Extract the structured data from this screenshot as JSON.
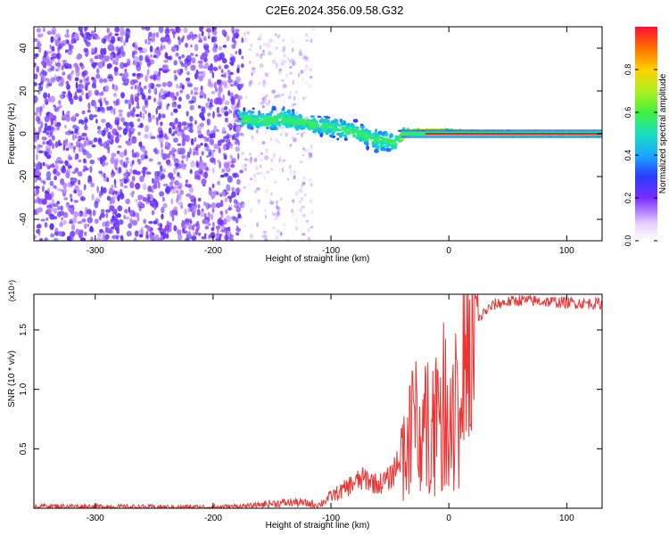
{
  "title": "C2E6.2024.356.09.58.G32",
  "chart_data": [
    {
      "type": "heatmap",
      "title": "C2E6.2024.356.09.58.G32",
      "xlabel": "Height of straight line (km)",
      "ylabel": "Frequency (Hz)",
      "xlim": [
        -352,
        130
      ],
      "ylim": [
        -50,
        50
      ],
      "xticks": [
        -300,
        -200,
        -100,
        0,
        100
      ],
      "yticks": [
        -40,
        -20,
        0,
        20,
        40
      ],
      "colorbar": {
        "label": "Normalized spectral amplitude",
        "range": [
          0,
          1
        ],
        "ticks": [
          "0.0",
          "0.2",
          "0.4",
          "0.6",
          "0.8"
        ]
      },
      "doppler_track": {
        "x": [
          -175,
          -160,
          -140,
          -120,
          -100,
          -80,
          -60,
          -45,
          -38,
          -20,
          0,
          20,
          60,
          100,
          130
        ],
        "y": [
          7,
          6,
          7,
          5,
          3,
          1,
          -3,
          -4,
          0,
          1,
          1,
          0.5,
          0,
          0,
          0
        ],
        "spread_hz": [
          6,
          6,
          7,
          6,
          6,
          6,
          7,
          6,
          3,
          1.5,
          1,
          1,
          1,
          1,
          1
        ]
      },
      "grid": false
    },
    {
      "type": "line",
      "xlabel": "Height of straight line (km)",
      "ylabel": "SNR (10 * v/v)",
      "scale_label": "(x10⁴)",
      "xlim": [
        -352,
        130
      ],
      "ylim": [
        0,
        1.8
      ],
      "xticks": [
        -300,
        -200,
        -100,
        0,
        100
      ],
      "yticks": [
        0.5,
        1.0,
        1.5
      ],
      "color": "#ee3333",
      "series": [
        {
          "x": [
            -352,
            -300,
            -250,
            -200,
            -170,
            -150,
            -130,
            -110,
            -100,
            -90,
            -80,
            -70,
            -60,
            -50,
            -45,
            -40,
            -35,
            -30,
            -25,
            -20,
            -15,
            -10,
            -5,
            0,
            5,
            10,
            20,
            30,
            40,
            60,
            80,
            100,
            130
          ],
          "values": [
            0.02,
            0.015,
            0.01,
            0.01,
            0.02,
            0.04,
            0.05,
            0.03,
            0.1,
            0.15,
            0.22,
            0.25,
            0.2,
            0.25,
            0.35,
            0.5,
            0.6,
            0.85,
            0.75,
            0.9,
            0.85,
            0.95,
            1.0,
            1.1,
            1.15,
            1.3,
            1.5,
            1.65,
            1.72,
            1.75,
            1.74,
            1.73,
            1.72
          ]
        }
      ],
      "grid": false
    }
  ]
}
